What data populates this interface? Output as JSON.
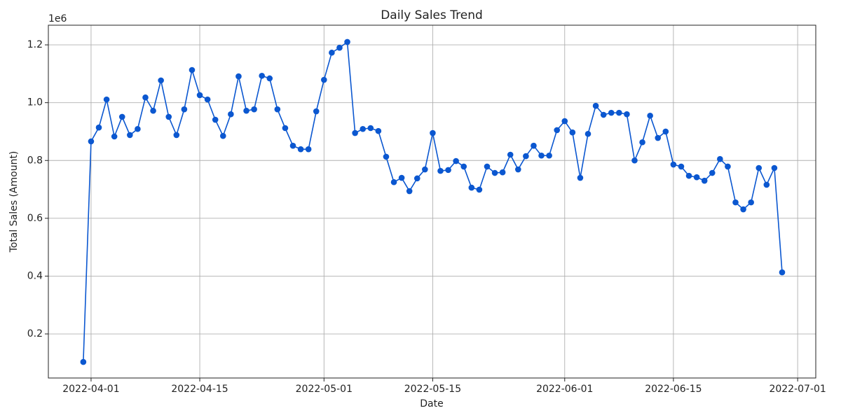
{
  "chart_data": {
    "type": "line",
    "title": "Daily Sales Trend",
    "x_label": "Date",
    "y_label": "Total Sales (Amount)",
    "y_offset_label": "1e6",
    "x": [
      "2022-03-31",
      "2022-04-01",
      "2022-04-02",
      "2022-04-03",
      "2022-04-04",
      "2022-04-05",
      "2022-04-06",
      "2022-04-07",
      "2022-04-08",
      "2022-04-09",
      "2022-04-10",
      "2022-04-11",
      "2022-04-12",
      "2022-04-13",
      "2022-04-14",
      "2022-04-15",
      "2022-04-16",
      "2022-04-17",
      "2022-04-18",
      "2022-04-19",
      "2022-04-20",
      "2022-04-21",
      "2022-04-22",
      "2022-04-23",
      "2022-04-24",
      "2022-04-25",
      "2022-04-26",
      "2022-04-27",
      "2022-04-28",
      "2022-04-29",
      "2022-04-30",
      "2022-05-01",
      "2022-05-02",
      "2022-05-03",
      "2022-05-04",
      "2022-05-05",
      "2022-05-06",
      "2022-05-07",
      "2022-05-08",
      "2022-05-09",
      "2022-05-10",
      "2022-05-11",
      "2022-05-12",
      "2022-05-13",
      "2022-05-14",
      "2022-05-15",
      "2022-05-16",
      "2022-05-17",
      "2022-05-18",
      "2022-05-19",
      "2022-05-20",
      "2022-05-21",
      "2022-05-22",
      "2022-05-23",
      "2022-05-24",
      "2022-05-25",
      "2022-05-26",
      "2022-05-27",
      "2022-05-28",
      "2022-05-29",
      "2022-05-30",
      "2022-05-31",
      "2022-06-01",
      "2022-06-02",
      "2022-06-03",
      "2022-06-04",
      "2022-06-05",
      "2022-06-06",
      "2022-06-07",
      "2022-06-08",
      "2022-06-09",
      "2022-06-10",
      "2022-06-11",
      "2022-06-12",
      "2022-06-13",
      "2022-06-14",
      "2022-06-15",
      "2022-06-16",
      "2022-06-17",
      "2022-06-18",
      "2022-06-19",
      "2022-06-20",
      "2022-06-21",
      "2022-06-22",
      "2022-06-23",
      "2022-06-24",
      "2022-06-25",
      "2022-06-26",
      "2022-06-27",
      "2022-06-28",
      "2022-06-29"
    ],
    "series": [
      {
        "name": "Total Sales",
        "color": "#0b57d0",
        "values": [
          0.103,
          0.866,
          0.914,
          1.011,
          0.883,
          0.951,
          0.888,
          0.909,
          1.018,
          0.972,
          1.077,
          0.951,
          0.888,
          0.977,
          1.113,
          1.026,
          1.011,
          0.941,
          0.885,
          0.96,
          1.091,
          0.972,
          0.977,
          1.093,
          1.084,
          0.977,
          0.912,
          0.851,
          0.839,
          0.839,
          0.97,
          1.079,
          1.173,
          1.19,
          1.21,
          0.895,
          0.909,
          0.912,
          0.902,
          0.813,
          0.725,
          0.74,
          0.694,
          0.738,
          0.769,
          0.895,
          0.764,
          0.767,
          0.798,
          0.779,
          0.706,
          0.699,
          0.779,
          0.757,
          0.759,
          0.82,
          0.769,
          0.815,
          0.851,
          0.817,
          0.817,
          0.905,
          0.936,
          0.897,
          0.74,
          0.892,
          0.989,
          0.958,
          0.965,
          0.965,
          0.96,
          0.8,
          0.863,
          0.955,
          0.878,
          0.9,
          0.786,
          0.779,
          0.747,
          0.742,
          0.73,
          0.757,
          0.805,
          0.779,
          0.655,
          0.631,
          0.655,
          0.774,
          0.716,
          0.774,
          0.413
        ]
      }
    ],
    "xlim": [
      "2022-03-26T12:00:00Z",
      "2022-07-03T08:00:00Z"
    ],
    "xticks": [
      "2022-04-01",
      "2022-04-15",
      "2022-05-01",
      "2022-05-15",
      "2022-06-01",
      "2022-06-15",
      "2022-07-01"
    ],
    "ylim": [
      0.0475,
      1.268
    ],
    "yticks": [
      0.2,
      0.4,
      0.6,
      0.8,
      {
        "value": 1,
        "label": "1.0"
      },
      1.2
    ],
    "grid": true
  }
}
